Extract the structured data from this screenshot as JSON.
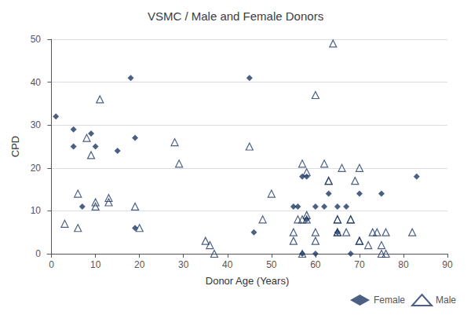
{
  "chart_data": {
    "type": "scatter",
    "title": "VSMC / Male and Female Donors",
    "xlabel": "Donor Age (Years)",
    "ylabel": "CPD",
    "xlim": [
      -1,
      90
    ],
    "ylim": [
      0,
      50
    ],
    "xticks": [
      0,
      10,
      20,
      30,
      40,
      50,
      60,
      70,
      80,
      90
    ],
    "yticks": [
      0,
      10,
      20,
      30,
      40,
      50
    ],
    "grid": true,
    "legend": "lower right",
    "series": [
      {
        "name": "Female",
        "color": "#1f3864",
        "marker": "diamond",
        "x": [
          1,
          5,
          5,
          7,
          9,
          10,
          15,
          18,
          19,
          19,
          45,
          46,
          55,
          56,
          57,
          57,
          58,
          58,
          60,
          60,
          62,
          63,
          65,
          65,
          67,
          68,
          70,
          75,
          83
        ],
        "values": [
          32,
          29,
          25,
          11,
          28,
          25,
          24,
          41,
          27,
          6,
          41,
          5,
          11,
          11,
          0,
          18,
          18,
          8,
          11,
          0,
          11,
          14,
          5,
          11,
          11,
          0,
          14,
          14,
          18
        ]
      },
      {
        "name": "Male",
        "color": "#1f3864",
        "marker": "triangle-open",
        "x": [
          3,
          6,
          6,
          8,
          9,
          10,
          10,
          11,
          13,
          13,
          19,
          20,
          28,
          29,
          35,
          36,
          37,
          45,
          48,
          50,
          55,
          55,
          56,
          57,
          57,
          57,
          58,
          58,
          58,
          60,
          60,
          60,
          62,
          63,
          63,
          64,
          65,
          65,
          65,
          65,
          66,
          67,
          68,
          68,
          69,
          70,
          70,
          70,
          72,
          73,
          74,
          75,
          75,
          76,
          76,
          82
        ],
        "values": [
          7,
          14,
          6,
          27,
          23,
          11,
          12,
          36,
          13,
          12,
          11,
          6,
          26,
          21,
          3,
          2,
          0,
          25,
          8,
          14,
          5,
          3,
          8,
          8,
          21,
          0,
          9,
          8,
          19,
          37,
          5,
          3,
          21,
          17,
          17,
          49,
          5,
          5,
          8,
          8,
          20,
          5,
          8,
          8,
          17,
          20,
          3,
          3,
          2,
          5,
          5,
          2,
          0,
          5,
          0,
          5
        ]
      }
    ]
  }
}
